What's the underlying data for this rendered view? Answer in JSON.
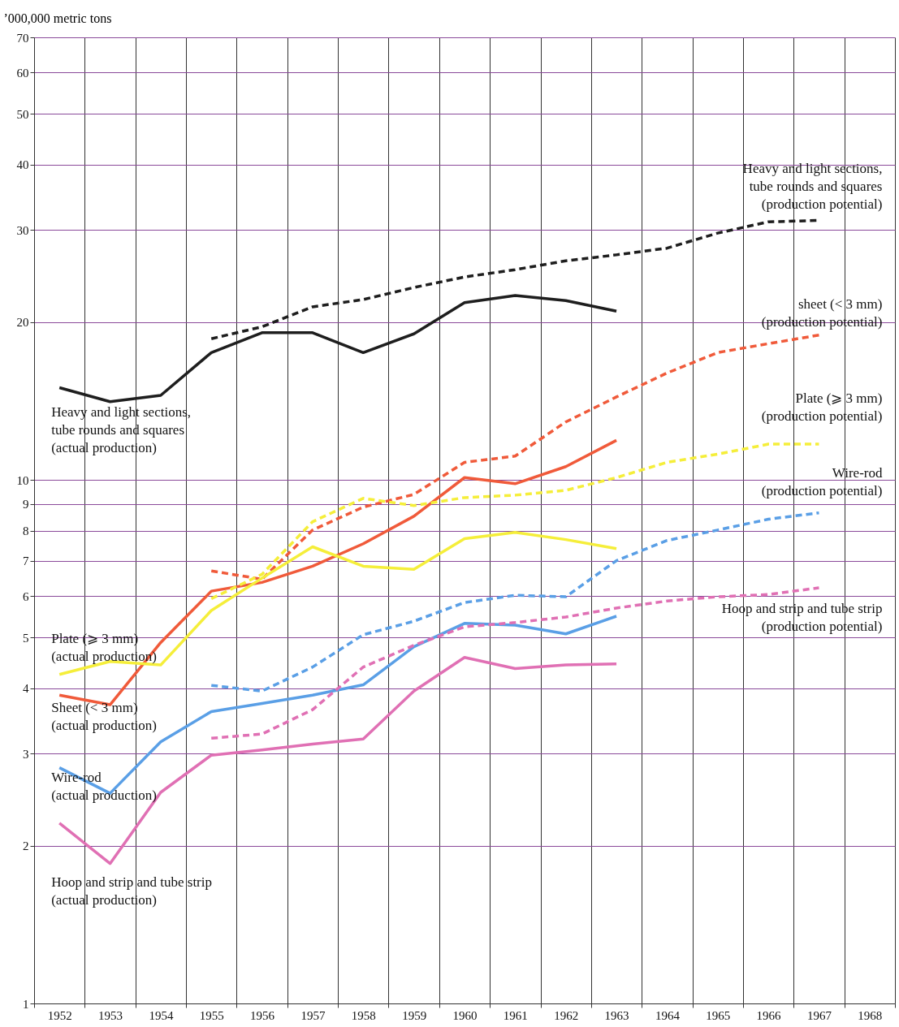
{
  "chart_data": {
    "type": "line",
    "ylabel": "’000,000 metric tons",
    "categories": [
      "1952",
      "1953",
      "1954",
      "1955",
      "1956",
      "1957",
      "1958",
      "1959",
      "1960",
      "1961",
      "1962",
      "1963",
      "1964",
      "1965",
      "1966",
      "1967",
      "1968"
    ],
    "log": true,
    "ylim": [
      1,
      70
    ],
    "yticks": [
      1,
      2,
      3,
      4,
      5,
      6,
      7,
      8,
      9,
      10,
      20,
      30,
      40,
      50,
      60,
      70
    ],
    "grid": true,
    "series": [
      {
        "name": "Heavy and light sections, tube rounds and squares (actual production)",
        "color": "#1e1e1e",
        "line_style": "solid",
        "values": [
          15.0,
          14.1,
          14.5,
          17.5,
          19.1,
          19.1,
          17.5,
          19.0,
          21.8,
          22.5,
          22.0,
          21.0,
          null,
          null,
          null,
          null,
          null
        ]
      },
      {
        "name": "Heavy and light sections, tube rounds and squares (production potential)",
        "color": "#1e1e1e",
        "line_style": "dashed",
        "values": [
          null,
          null,
          null,
          18.6,
          19.6,
          21.4,
          22.1,
          23.3,
          24.4,
          25.2,
          26.2,
          26.9,
          27.7,
          29.6,
          31.1,
          31.3,
          null
        ]
      },
      {
        "name": "Sheet (< 3 mm) (actual production)",
        "color": "#f05a3a",
        "line_style": "solid",
        "values": [
          3.88,
          3.72,
          4.89,
          6.13,
          6.37,
          6.84,
          7.55,
          8.52,
          10.1,
          9.83,
          10.6,
          11.9,
          null,
          null,
          null,
          null,
          null
        ]
      },
      {
        "name": "sheet (< 3 mm) (production potential)",
        "color": "#f05a3a",
        "line_style": "dashed",
        "values": [
          null,
          null,
          null,
          6.7,
          6.46,
          8.02,
          8.87,
          9.38,
          10.8,
          11.1,
          12.9,
          14.4,
          16.0,
          17.5,
          18.2,
          18.9,
          null
        ]
      },
      {
        "name": "Plate (⩾ 3 mm) (actual production)",
        "color": "#f5ee3a",
        "line_style": "solid",
        "values": [
          4.25,
          4.5,
          4.43,
          5.63,
          6.49,
          7.45,
          6.84,
          6.75,
          7.72,
          7.94,
          7.69,
          7.39,
          null,
          null,
          null,
          null,
          null
        ]
      },
      {
        "name": "Plate (⩾ 3 mm) (production potential)",
        "color": "#f5ee3a",
        "line_style": "dashed",
        "values": [
          null,
          null,
          null,
          5.93,
          6.6,
          8.32,
          9.22,
          8.93,
          9.25,
          9.35,
          9.55,
          10.1,
          10.8,
          11.2,
          11.7,
          11.7,
          null
        ]
      },
      {
        "name": "Wire-rod (actual production)",
        "color": "#5a9fe6",
        "line_style": "solid",
        "values": [
          2.82,
          2.52,
          3.16,
          3.61,
          3.74,
          3.88,
          4.06,
          4.8,
          5.32,
          5.28,
          5.08,
          5.49,
          null,
          null,
          null,
          null,
          null
        ]
      },
      {
        "name": "Wire-rod (production potential)",
        "color": "#5a9fe6",
        "line_style": "dashed",
        "values": [
          null,
          null,
          null,
          4.05,
          3.95,
          4.39,
          5.06,
          5.37,
          5.83,
          6.02,
          5.98,
          7.01,
          7.66,
          8.02,
          8.41,
          8.65,
          null
        ]
      },
      {
        "name": "Hoop and strip and tube strip (actual production)",
        "color": "#e070b4",
        "line_style": "solid",
        "values": [
          2.21,
          1.85,
          2.53,
          2.98,
          3.05,
          3.13,
          3.2,
          3.95,
          4.58,
          4.36,
          4.43,
          4.45,
          null,
          null,
          null,
          null,
          null
        ]
      },
      {
        "name": "Hoop and strip and tube strip (production potential)",
        "color": "#e070b4",
        "line_style": "dashed",
        "values": [
          null,
          null,
          null,
          3.21,
          3.27,
          3.64,
          4.39,
          4.83,
          5.24,
          5.34,
          5.47,
          5.69,
          5.87,
          5.98,
          6.04,
          6.22,
          null
        ]
      }
    ]
  }
}
